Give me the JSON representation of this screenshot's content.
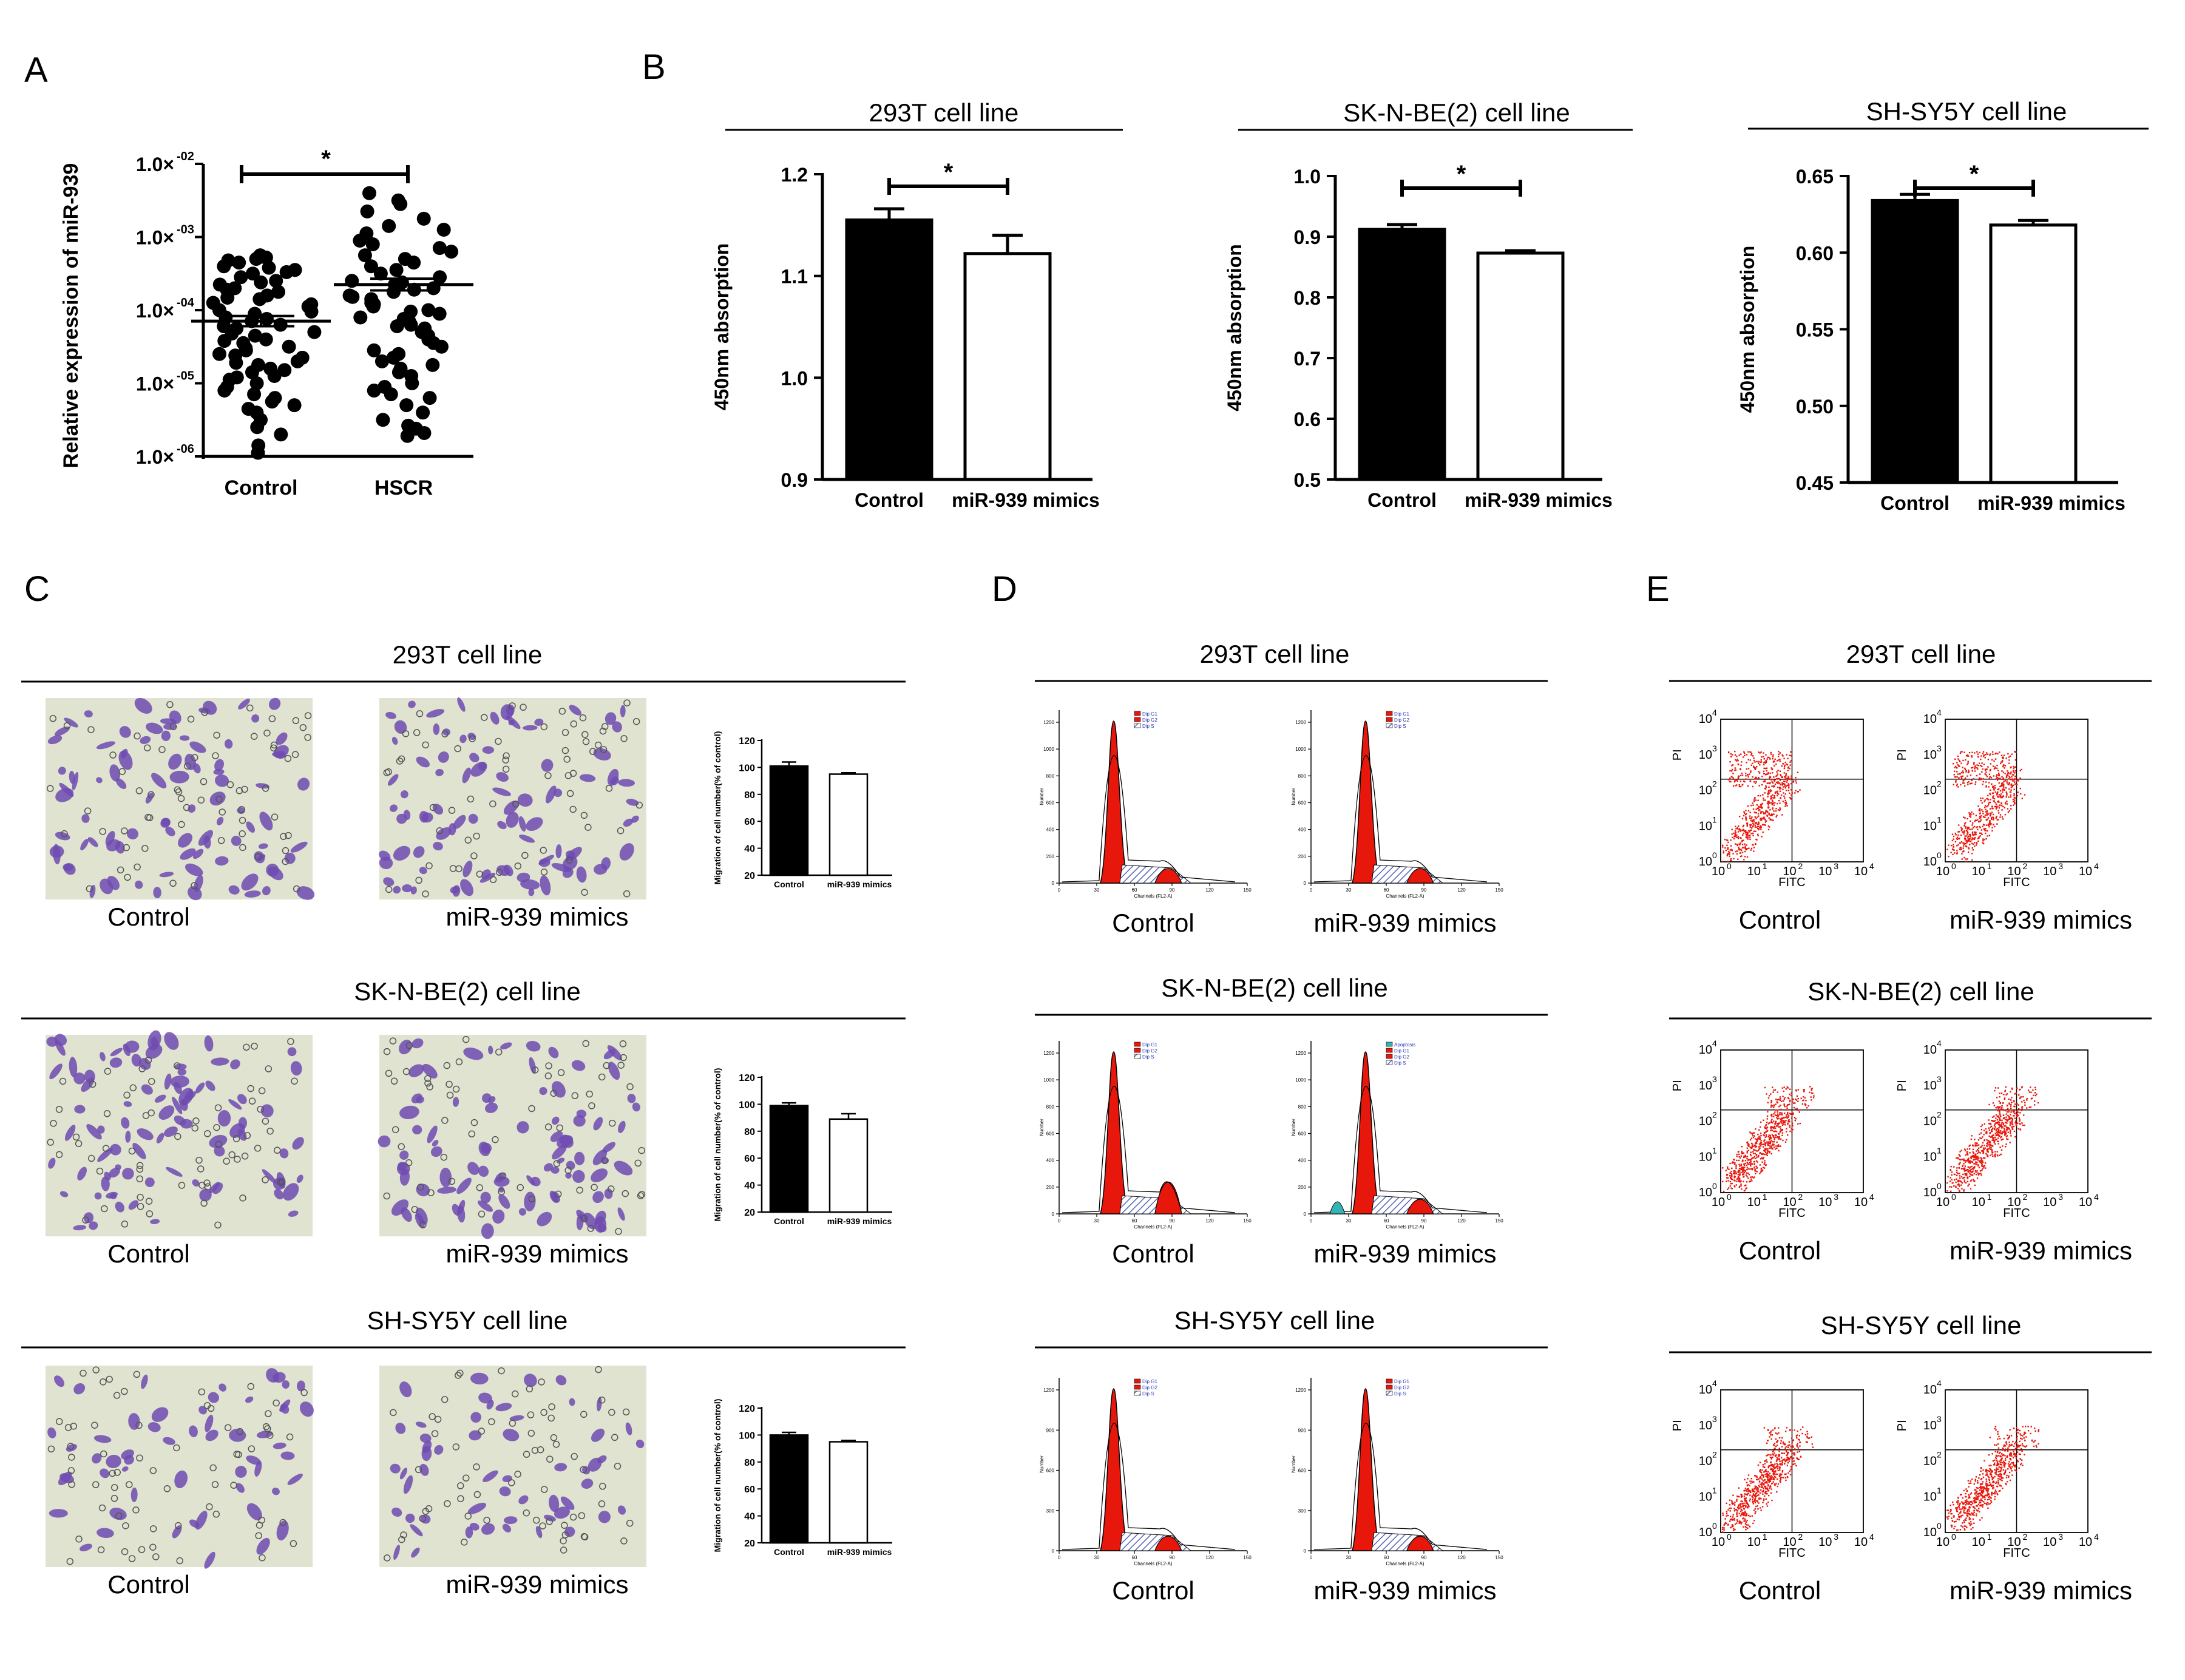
{
  "panel_letters": [
    "A",
    "B",
    "C",
    "D",
    "E"
  ],
  "colors": {
    "black": "#000000",
    "white": "#ffffff",
    "dot": "#000000",
    "red": "#e8170c",
    "crystal": "#6f4bb2",
    "bg_field": "#dfe3cf",
    "hatch": "#5566b0",
    "cyan": "#33b5b5"
  },
  "chart_data": [
    {
      "id": "A",
      "type": "scatter",
      "ylabel": "Relative expression of miR-939",
      "y_ticks": [
        "1.0× -02",
        "1.0× -03",
        "1.0× -04",
        "1.0× -05",
        "1.0× -06"
      ],
      "y_scale": "log",
      "ylim": [
        -6,
        -2
      ],
      "categories": [
        "Control",
        "HSCR"
      ],
      "significance": "*",
      "means_log10": [
        -4.15,
        -3.65
      ],
      "sem_log10": [
        0.07,
        0.08
      ],
      "points_log10": [
        [
          -3.25,
          -3.28,
          -3.32,
          -3.35,
          -3.3,
          -3.27,
          -3.4,
          -3.45,
          -3.42,
          -3.5,
          -3.55,
          -3.48,
          -3.6,
          -3.65,
          -3.62,
          -3.7,
          -3.75,
          -3.72,
          -3.8,
          -3.85,
          -3.83,
          -3.9,
          -3.95,
          -3.92,
          -4.0,
          -4.05,
          -4.02,
          -4.1,
          -4.15,
          -4.12,
          -4.2,
          -4.25,
          -4.22,
          -4.3,
          -4.35,
          -4.32,
          -4.4,
          -4.45,
          -4.42,
          -4.5,
          -4.55,
          -4.52,
          -4.6,
          -4.65,
          -4.62,
          -4.7,
          -4.75,
          -4.72,
          -4.8,
          -4.85,
          -4.82,
          -4.9,
          -4.95,
          -4.92,
          -5.0,
          -5.05,
          -5.1,
          -5.15,
          -5.2,
          -5.25,
          -5.3,
          -5.35,
          -5.4,
          -5.5,
          -5.6,
          -5.7,
          -5.85,
          -5.95
        ],
        [
          -2.4,
          -2.5,
          -2.55,
          -2.65,
          -2.75,
          -2.85,
          -2.9,
          -2.95,
          -3.05,
          -3.1,
          -3.15,
          -3.2,
          -3.25,
          -3.3,
          -3.35,
          -3.4,
          -3.45,
          -3.5,
          -3.55,
          -3.6,
          -3.62,
          -3.65,
          -3.7,
          -3.72,
          -3.75,
          -3.8,
          -3.82,
          -3.85,
          -3.9,
          -3.92,
          -3.95,
          -4.0,
          -4.02,
          -4.05,
          -4.1,
          -4.12,
          -4.15,
          -4.2,
          -4.22,
          -4.25,
          -4.3,
          -4.35,
          -4.4,
          -4.45,
          -4.5,
          -4.55,
          -4.6,
          -4.65,
          -4.7,
          -4.75,
          -4.8,
          -4.85,
          -4.9,
          -5.0,
          -5.05,
          -5.1,
          -5.15,
          -5.2,
          -5.3,
          -5.4,
          -5.5,
          -5.58,
          -5.62,
          -5.68,
          -5.72
        ]
      ]
    },
    {
      "id": "B1",
      "type": "bar",
      "title": "293T cell line",
      "ylabel": "450nm absorption",
      "categories": [
        "Control",
        "miR-939 mimics"
      ],
      "values": [
        1.155,
        1.122
      ],
      "errors": [
        0.011,
        0.018
      ],
      "ylim": [
        0.9,
        1.2
      ],
      "y_ticks": [
        "1.2",
        "1.1",
        "1.0",
        "0.9"
      ],
      "tick_values": [
        1.2,
        1.1,
        1.0,
        0.9
      ],
      "significance": "*"
    },
    {
      "id": "B2",
      "type": "bar",
      "title": "SK-N-BE(2) cell line",
      "ylabel": "450nm absorption",
      "categories": [
        "Control",
        "miR-939 mimics"
      ],
      "values": [
        0.912,
        0.873
      ],
      "errors": [
        0.008,
        0.004
      ],
      "ylim": [
        0.5,
        1.0
      ],
      "y_ticks": [
        "1.0",
        "0.9",
        "0.8",
        "0.7",
        "0.6",
        "0.5"
      ],
      "tick_values": [
        1.0,
        0.9,
        0.8,
        0.7,
        0.6,
        0.5
      ],
      "significance": "*"
    },
    {
      "id": "B3",
      "type": "bar",
      "title": "SH-SY5Y cell line",
      "ylabel": "450nm absorption",
      "categories": [
        "Control",
        "miR-939 mimics"
      ],
      "values": [
        0.634,
        0.618
      ],
      "errors": [
        0.004,
        0.003
      ],
      "ylim": [
        0.45,
        0.65
      ],
      "y_ticks": [
        "0.65",
        "0.60",
        "0.55",
        "0.50",
        "0.45"
      ],
      "tick_values": [
        0.65,
        0.6,
        0.55,
        0.5,
        0.45
      ],
      "significance": "*"
    },
    {
      "id": "C",
      "type": "bar",
      "ylabel": "Migration of cell number(% of control)",
      "categories": [
        "Control",
        "miR-939 mimics"
      ],
      "ylim": [
        20,
        120
      ],
      "y_ticks": [
        "120",
        "100",
        "80",
        "60",
        "40",
        "20"
      ],
      "tick_values": [
        120,
        100,
        80,
        60,
        40,
        20
      ],
      "rows": [
        {
          "title": "293T cell line",
          "values": [
            101,
            95
          ],
          "errors": [
            3,
            1
          ]
        },
        {
          "title": "SK-N-BE(2) cell line",
          "values": [
            99,
            89
          ],
          "errors": [
            2,
            4
          ]
        },
        {
          "title": "SH-SY5Y cell line",
          "values": [
            100,
            95
          ],
          "errors": [
            2,
            1
          ]
        }
      ],
      "image_labels": [
        "Control",
        "miR-939 mimics"
      ]
    },
    {
      "id": "D",
      "type": "area",
      "xlabel": "Channels (FL2-A)",
      "ylabel": "Number",
      "x_ticks": [
        "0",
        "30",
        "60",
        "90",
        "120",
        "150"
      ],
      "legend_a": [
        "Dip G1",
        "Dip G2",
        "Dip S"
      ],
      "legend_b": [
        "Apoptosis",
        "Dip G1",
        "Dip G2",
        "Dip S"
      ],
      "rows": [
        {
          "title": "293T cell line",
          "y_ticks": [
            "0",
            "200",
            "400",
            "600",
            "800",
            "1000",
            "1200"
          ]
        },
        {
          "title": "SK-N-BE(2) cell line",
          "y_ticks": [
            "0",
            "200",
            "400",
            "600",
            "800",
            "1000",
            "1200"
          ]
        },
        {
          "title": "SH-SY5Y cell line",
          "y_ticks": [
            "0",
            "300",
            "600",
            "900",
            "1200"
          ]
        }
      ],
      "labels": [
        "Control",
        "miR-939 mimics"
      ]
    },
    {
      "id": "E",
      "type": "scatter",
      "xlabel": "FITC",
      "ylabel": "PI",
      "rows": [
        {
          "title": "293T cell line"
        },
        {
          "title": "SK-N-BE(2) cell line"
        },
        {
          "title": "SH-SY5Y cell line"
        }
      ],
      "labels": [
        "Control",
        "miR-939 mimics"
      ]
    }
  ]
}
